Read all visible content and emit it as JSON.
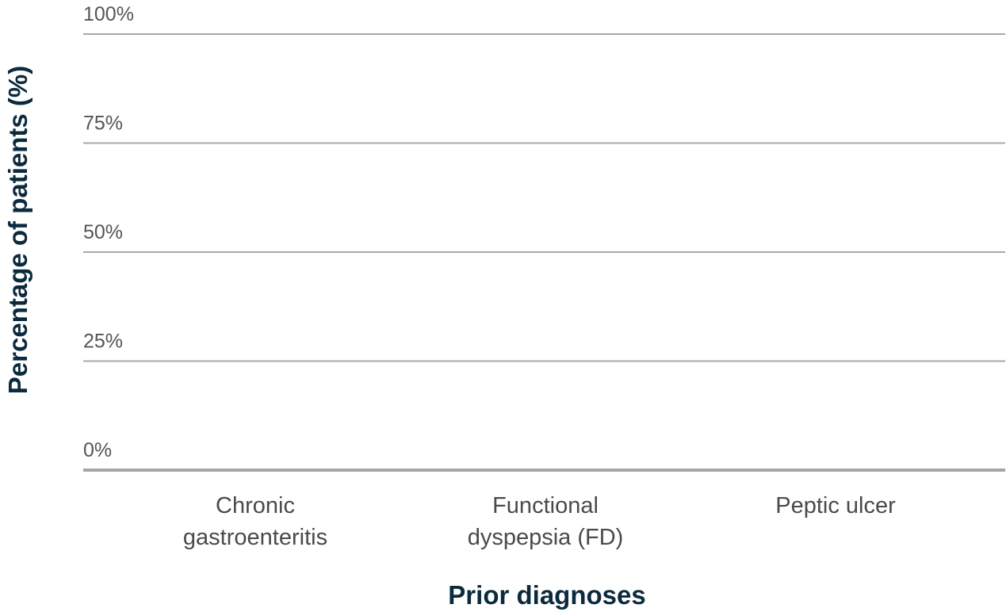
{
  "chart_data": {
    "type": "bar",
    "title": "",
    "xlabel": "Prior diagnoses",
    "ylabel": "Percentage of patients (%)",
    "categories": [
      [
        "Chronic",
        "gastroenteritis"
      ],
      [
        "Functional",
        "dyspepsia (FD)"
      ],
      [
        "Peptic ulcer"
      ]
    ],
    "ylim": [
      0,
      100
    ],
    "y_ticks": [
      {
        "value": 0,
        "label": "0%"
      },
      {
        "value": 25,
        "label": "25%"
      },
      {
        "value": 50,
        "label": "50%"
      },
      {
        "value": 75,
        "label": "75%"
      },
      {
        "value": 100,
        "label": "100%"
      }
    ],
    "grid": true,
    "colors": {
      "axis_title": "#0b2a3d",
      "gridline": "#a8a8a8",
      "baseline": "#a5a5a5",
      "tick_text": "#555555",
      "category_text": "#4a4a4a"
    }
  }
}
